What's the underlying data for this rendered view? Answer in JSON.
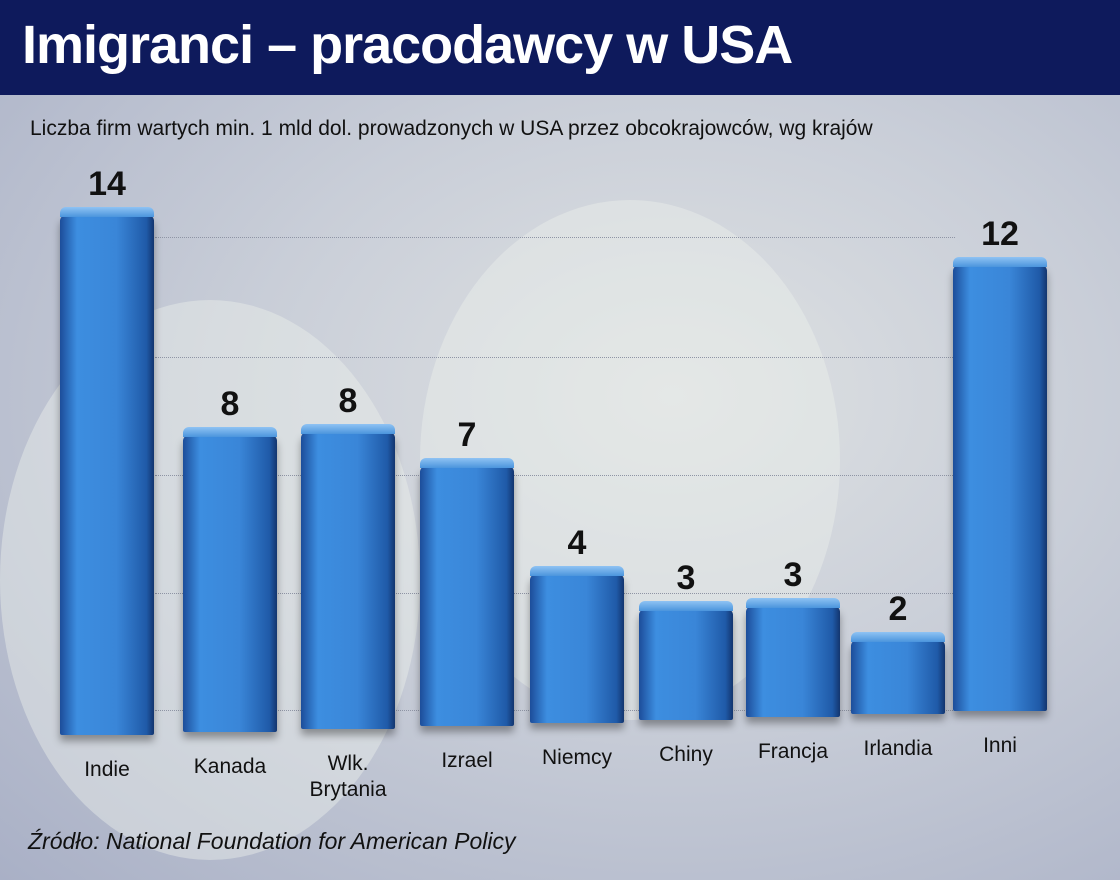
{
  "chart_data": {
    "type": "bar",
    "title": "Imigranci – pracodawcy w USA",
    "subtitle": "Liczba firm wartych min. 1 mld dol. prowadzonych w USA przez obcokrajowców, wg krajów",
    "categories": [
      "Indie",
      "Kanada",
      "Wlk. Brytania",
      "Izrael",
      "Niemcy",
      "Chiny",
      "Francja",
      "Irlandia",
      "Inni"
    ],
    "values": [
      14,
      8,
      8,
      7,
      4,
      3,
      3,
      2,
      12
    ],
    "color": "#3a86d8",
    "source": "Źródło: National Foundation for American Policy"
  }
}
